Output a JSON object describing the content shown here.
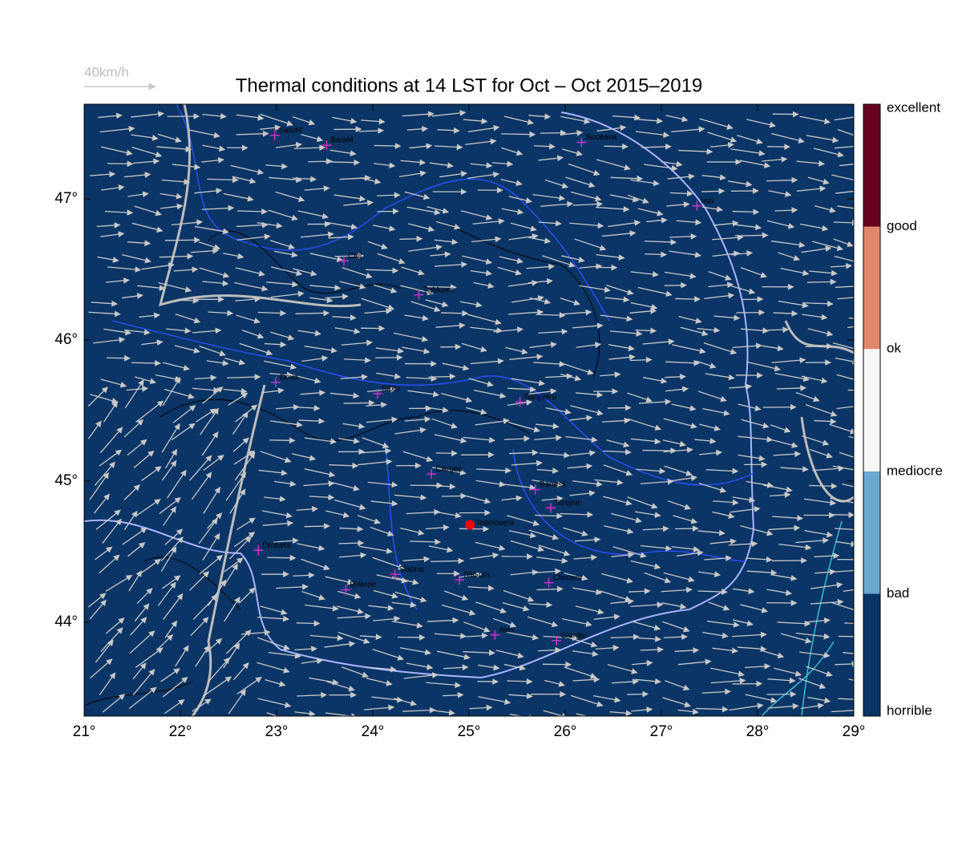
{
  "chart_data": {
    "type": "map",
    "title": "Thermal conditions at 14 LST for Oct – Oct  2015–2019",
    "scale_label": "40km/h",
    "background": "#0a3566",
    "xlim": [
      21,
      29
    ],
    "ylim": [
      43.335,
      47.67
    ],
    "xticks": [
      {
        "value": 21,
        "label": "21°"
      },
      {
        "value": 22,
        "label": "22°"
      },
      {
        "value": 23,
        "label": "23°"
      },
      {
        "value": 24,
        "label": "24°"
      },
      {
        "value": 25,
        "label": "25°"
      },
      {
        "value": 26,
        "label": "26°"
      },
      {
        "value": 27,
        "label": "27°"
      },
      {
        "value": 28,
        "label": "28°"
      },
      {
        "value": 29,
        "label": "29°"
      }
    ],
    "yticks": [
      {
        "value": 44,
        "label": "44°"
      },
      {
        "value": 45,
        "label": "45°"
      },
      {
        "value": 46,
        "label": "46°"
      },
      {
        "value": 47,
        "label": "47°"
      }
    ],
    "colorbar": {
      "labels": [
        "horrible",
        "bad",
        "mediocre",
        "ok",
        "good",
        "excellent"
      ],
      "colors": [
        "#0a3566",
        "#6aa9d1",
        "#f7f7f7",
        "#e3876c",
        "#67001f"
      ]
    },
    "cities": [
      {
        "name": "SatuM",
        "lon": 22.98,
        "lat": 47.45
      },
      {
        "name": "BaiaM",
        "lon": 23.52,
        "lat": 47.38
      },
      {
        "name": "Suceava",
        "lon": 26.17,
        "lat": 47.4
      },
      {
        "name": "Iasi",
        "lon": 27.37,
        "lat": 46.95
      },
      {
        "name": "Cluj",
        "lon": 23.7,
        "lat": 46.56
      },
      {
        "name": "TgMures",
        "lon": 24.48,
        "lat": 46.32
      },
      {
        "name": "Deva",
        "lon": 22.99,
        "lat": 45.7
      },
      {
        "name": "Sibiu",
        "lon": 24.05,
        "lat": 45.62
      },
      {
        "name": "Sanpetru",
        "lon": 25.53,
        "lat": 45.56
      },
      {
        "name": "CArges",
        "lon": 24.61,
        "lat": 45.05
      },
      {
        "name": "Banesti",
        "lon": 25.69,
        "lat": 44.94
      },
      {
        "name": "Strejnic",
        "lon": 25.85,
        "lat": 44.81
      },
      {
        "name": "Drobeta",
        "lon": 22.81,
        "lat": 44.51
      },
      {
        "name": "Slatina",
        "lon": 24.23,
        "lat": 44.34
      },
      {
        "name": "SilGum",
        "lon": 24.9,
        "lat": 44.3
      },
      {
        "name": "BVerde",
        "lon": 23.72,
        "lat": 44.23
      },
      {
        "name": "Clinceni",
        "lon": 25.83,
        "lat": 44.28
      },
      {
        "name": "Alex",
        "lon": 25.27,
        "lat": 43.91
      },
      {
        "name": "Giurgiu",
        "lon": 25.91,
        "lat": 43.87
      }
    ],
    "site": {
      "name": "Topoloveni",
      "lon": 25.01,
      "lat": 44.69,
      "color": "#ff0000"
    },
    "city_color": "#cc33cc"
  }
}
